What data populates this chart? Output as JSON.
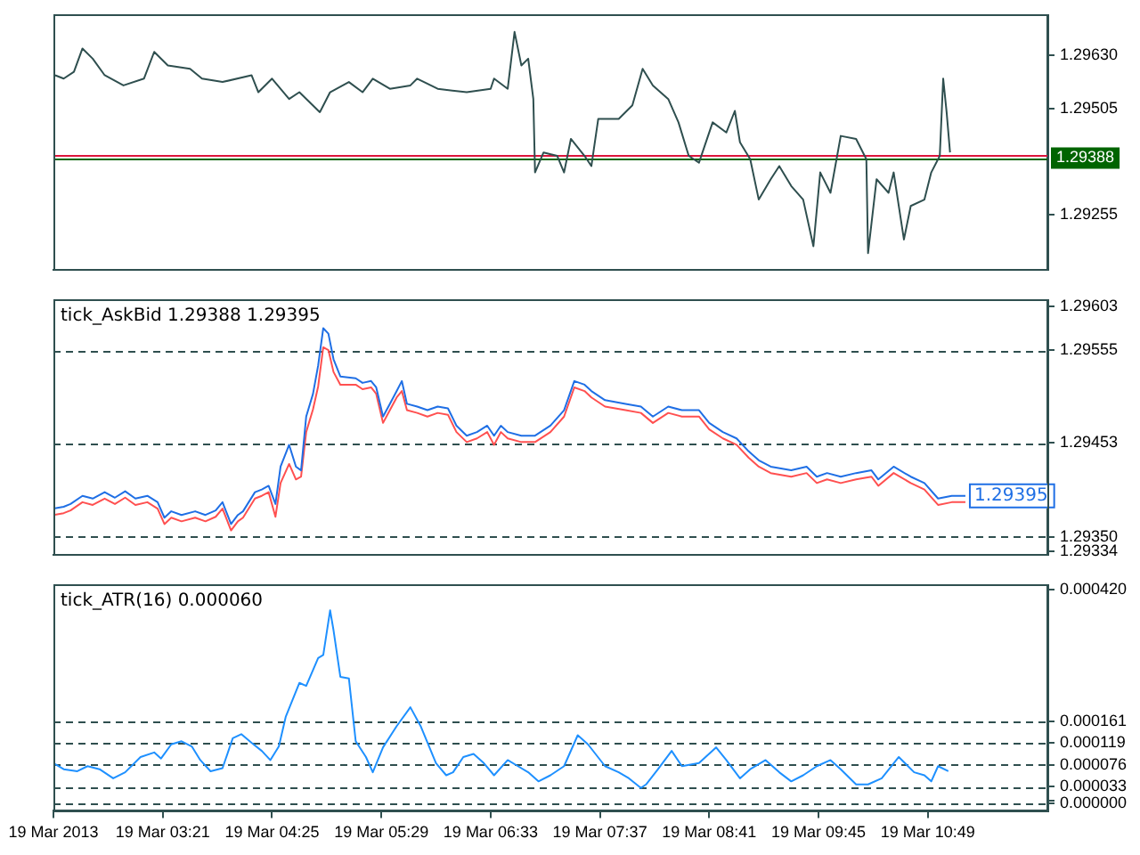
{
  "chart_data": [
    {
      "type": "line",
      "x": [
        "2013-03-19T02:18",
        "2013-03-19T02:23",
        "2013-03-19T02:29",
        "2013-03-19T02:34",
        "2013-03-19T02:40",
        "2013-03-19T02:47",
        "2013-03-19T02:58",
        "2013-03-19T03:10",
        "2013-03-19T03:16",
        "2013-03-19T03:24",
        "2013-03-19T03:37",
        "2013-03-19T03:44",
        "2013-03-19T03:56",
        "2013-03-19T04:13",
        "2013-03-19T04:17",
        "2013-03-19T04:25",
        "2013-03-19T04:35",
        "2013-03-19T04:41",
        "2013-03-19T04:53",
        "2013-03-19T04:59",
        "2013-03-19T05:10",
        "2013-03-19T05:18",
        "2013-03-19T05:24",
        "2013-03-19T05:34",
        "2013-03-19T05:46",
        "2013-03-19T05:50",
        "2013-03-19T06:02",
        "2013-03-19T06:19",
        "2013-03-19T06:33",
        "2013-03-19T06:35",
        "2013-03-19T06:43",
        "2013-03-19T06:47",
        "2013-03-19T06:51",
        "2013-03-19T06:55",
        "2013-03-19T06:58",
        "2013-03-19T06:59",
        "2013-03-19T07:04",
        "2013-03-19T07:12",
        "2013-03-19T07:16",
        "2013-03-19T07:20",
        "2013-03-19T07:28",
        "2013-03-19T07:32",
        "2013-03-19T07:36",
        "2013-03-19T07:48",
        "2013-03-19T07:56",
        "2013-03-19T08:02",
        "2013-03-19T08:08",
        "2013-03-19T08:17",
        "2013-03-19T08:23",
        "2013-03-19T08:29",
        "2013-03-19T08:35",
        "2013-03-19T08:43",
        "2013-03-19T08:51",
        "2013-03-19T08:56",
        "2013-03-19T08:59",
        "2013-03-19T09:05",
        "2013-03-19T09:10",
        "2013-03-19T09:17",
        "2013-03-19T09:22",
        "2013-03-19T09:29",
        "2013-03-19T09:36",
        "2013-03-19T09:42",
        "2013-03-19T09:46",
        "2013-03-19T09:52",
        "2013-03-19T09:58",
        "2013-03-19T10:07",
        "2013-03-19T10:13",
        "2013-03-19T10:14",
        "2013-03-19T10:19",
        "2013-03-19T10:26",
        "2013-03-19T10:29",
        "2013-03-19T10:35",
        "2013-03-19T10:39",
        "2013-03-19T10:47",
        "2013-03-19T10:51",
        "2013-03-19T10:56",
        "2013-03-19T10:58",
        "2013-03-19T11:00",
        "2013-03-19T11:02"
      ],
      "series": [
        {
          "color": "#2f4f4f",
          "values": [
            1.29583,
            1.29575,
            1.29591,
            1.29646,
            1.29622,
            1.29583,
            1.29559,
            1.29575,
            1.29638,
            1.29606,
            1.29598,
            1.29575,
            1.29567,
            1.29583,
            1.29543,
            1.29575,
            1.29527,
            1.29543,
            1.29496,
            1.29543,
            1.29567,
            1.29543,
            1.29575,
            1.29551,
            1.29559,
            1.29575,
            1.29551,
            1.29543,
            1.29551,
            1.29575,
            1.29551,
            1.29685,
            1.29606,
            1.29622,
            1.29527,
            1.29354,
            1.29401,
            1.29393,
            1.29354,
            1.29433,
            1.29393,
            1.29369,
            1.2948,
            1.2948,
            1.29512,
            1.29598,
            1.29559,
            1.29527,
            1.29472,
            1.29393,
            1.29377,
            1.29472,
            1.29448,
            1.29499,
            1.29425,
            1.29385,
            1.2929,
            1.29338,
            1.29369,
            1.29322,
            1.2929,
            1.2918,
            1.29354,
            1.29306,
            1.2944,
            1.29433,
            1.29385,
            1.29164,
            1.29338,
            1.29306,
            1.29354,
            1.29196,
            1.29275,
            1.2929,
            1.29354,
            1.29393,
            1.29575,
            1.29496,
            1.29401
          ]
        }
      ],
      "xlim": [
        "2013-03-19T02:17",
        "2013-03-19T11:59"
      ],
      "ylim": [
        1.29124,
        1.29725
      ],
      "yticks": [
        {
          "value": 1.2963,
          "label": "1.29630"
        },
        {
          "value": 1.29505,
          "label": "1.29505"
        },
        {
          "value": 1.29255,
          "label": "1.29255"
        }
      ],
      "ref_lines": [
        {
          "axis": "y",
          "value": 1.29395,
          "color": "#dc143c"
        },
        {
          "axis": "y",
          "value": 1.29388,
          "label": "1.29388",
          "color": "#006400"
        }
      ],
      "tick_labels": "y"
    },
    {
      "type": "line",
      "title": "tick_AskBid 1.29388 1.29395",
      "x": [
        "2013-03-19T02:17",
        "2013-03-19T02:23",
        "2013-03-19T02:27",
        "2013-03-19T02:34",
        "2013-03-19T02:40",
        "2013-03-19T02:47",
        "2013-03-19T02:53",
        "2013-03-19T02:59",
        "2013-03-19T03:05",
        "2013-03-19T03:12",
        "2013-03-19T03:18",
        "2013-03-19T03:22",
        "2013-03-19T03:26",
        "2013-03-19T03:32",
        "2013-03-19T03:40",
        "2013-03-19T03:46",
        "2013-03-19T03:52",
        "2013-03-19T03:56",
        "2013-03-19T04:01",
        "2013-03-19T04:05",
        "2013-03-19T04:08",
        "2013-03-19T04:15",
        "2013-03-19T04:19",
        "2013-03-19T04:23",
        "2013-03-19T04:27",
        "2013-03-19T04:30",
        "2013-03-19T04:35",
        "2013-03-19T04:39",
        "2013-03-19T04:42",
        "2013-03-19T04:45",
        "2013-03-19T04:49",
        "2013-03-19T04:52",
        "2013-03-19T04:55",
        "2013-03-19T04:58",
        "2013-03-19T05:01",
        "2013-03-19T05:05",
        "2013-03-19T05:14",
        "2013-03-19T05:18",
        "2013-03-19T05:23",
        "2013-03-19T05:26",
        "2013-03-19T05:30",
        "2013-03-19T05:34",
        "2013-03-19T05:38",
        "2013-03-19T05:41",
        "2013-03-19T05:44",
        "2013-03-19T05:50",
        "2013-03-19T05:56",
        "2013-03-19T06:02",
        "2013-03-19T06:08",
        "2013-03-19T06:13",
        "2013-03-19T06:19",
        "2013-03-19T06:25",
        "2013-03-19T06:31",
        "2013-03-19T06:35",
        "2013-03-19T06:39",
        "2013-03-19T06:43",
        "2013-03-19T06:51",
        "2013-03-19T06:59",
        "2013-03-19T07:08",
        "2013-03-19T07:16",
        "2013-03-19T07:22",
        "2013-03-19T07:28",
        "2013-03-19T07:32",
        "2013-03-19T07:40",
        "2013-03-19T07:52",
        "2013-03-19T08:01",
        "2013-03-19T08:08",
        "2013-03-19T08:17",
        "2013-03-19T08:25",
        "2013-03-19T08:35",
        "2013-03-19T08:41",
        "2013-03-19T08:49",
        "2013-03-19T08:57",
        "2013-03-19T09:04",
        "2013-03-19T09:10",
        "2013-03-19T09:17",
        "2013-03-19T09:29",
        "2013-03-19T09:38",
        "2013-03-19T09:44",
        "2013-03-19T09:50",
        "2013-03-19T09:58",
        "2013-03-19T10:07",
        "2013-03-19T10:16",
        "2013-03-19T10:20",
        "2013-03-19T10:29",
        "2013-03-19T10:39",
        "2013-03-19T10:47",
        "2013-03-19T10:55",
        "2013-03-19T11:03",
        "2013-03-19T11:11"
      ],
      "series": [
        {
          "color": "#1f6fe5",
          "values": [
            1.29381,
            1.29383,
            1.29386,
            1.29395,
            1.29392,
            1.29399,
            1.29393,
            1.294,
            1.29392,
            1.29395,
            1.29388,
            1.29371,
            1.29378,
            1.29374,
            1.29378,
            1.29374,
            1.29379,
            1.29388,
            1.29364,
            1.29374,
            1.29378,
            1.29399,
            1.29402,
            1.29406,
            1.29386,
            1.29427,
            1.29451,
            1.29427,
            1.29423,
            1.29482,
            1.29507,
            1.29538,
            1.29579,
            1.29573,
            1.29545,
            1.29526,
            1.29524,
            1.29519,
            1.29521,
            1.29514,
            1.29482,
            1.29496,
            1.2951,
            1.29521,
            1.29496,
            1.29493,
            1.29489,
            1.29493,
            1.29491,
            1.29472,
            1.29461,
            1.29465,
            1.29472,
            1.29461,
            1.29472,
            1.29465,
            1.29461,
            1.29461,
            1.29472,
            1.29489,
            1.29521,
            1.29517,
            1.2951,
            1.295,
            1.29496,
            1.29493,
            1.29482,
            1.29493,
            1.29489,
            1.29489,
            1.29475,
            1.29465,
            1.29458,
            1.29444,
            1.29434,
            1.29427,
            1.29423,
            1.29427,
            1.29416,
            1.2942,
            1.29416,
            1.2942,
            1.29423,
            1.29413,
            1.29427,
            1.29416,
            1.29409,
            1.29392,
            1.29395,
            1.29395
          ]
        },
        {
          "color": "#ff5050",
          "values": [
            1.29374,
            1.29376,
            1.29379,
            1.29388,
            1.29385,
            1.29392,
            1.29386,
            1.29393,
            1.29385,
            1.29388,
            1.29381,
            1.29364,
            1.29371,
            1.29367,
            1.29371,
            1.29367,
            1.29372,
            1.29381,
            1.29357,
            1.29367,
            1.29371,
            1.29392,
            1.29395,
            1.29399,
            1.29372,
            1.29409,
            1.2943,
            1.29413,
            1.29416,
            1.29465,
            1.2949,
            1.29515,
            1.29558,
            1.29555,
            1.29531,
            1.29517,
            1.29517,
            1.29512,
            1.29514,
            1.29507,
            1.29475,
            1.29489,
            1.29503,
            1.2951,
            1.29489,
            1.29486,
            1.29482,
            1.29486,
            1.29484,
            1.29465,
            1.29454,
            1.29458,
            1.29465,
            1.29451,
            1.29465,
            1.29458,
            1.29454,
            1.29454,
            1.29465,
            1.29482,
            1.29514,
            1.2951,
            1.29503,
            1.29493,
            1.29489,
            1.29486,
            1.29475,
            1.29486,
            1.29482,
            1.29482,
            1.29468,
            1.29458,
            1.29451,
            1.29437,
            1.29427,
            1.2942,
            1.29416,
            1.2942,
            1.29409,
            1.29413,
            1.29409,
            1.29413,
            1.29416,
            1.29406,
            1.2942,
            1.29409,
            1.29402,
            1.29385,
            1.29388,
            1.29388
          ]
        }
      ],
      "xlim": [
        "2013-03-19T02:17",
        "2013-03-19T11:59"
      ],
      "ylim": [
        1.2933,
        1.2961
      ],
      "yticks": [
        {
          "value": 1.29603,
          "label": "1.29603"
        },
        {
          "value": 1.29555,
          "label": "1.29555"
        },
        {
          "value": 1.29453,
          "label": "1.29453"
        },
        {
          "value": 1.2935,
          "label": "1.29350"
        },
        {
          "value": 1.29334,
          "label": "1.29334"
        }
      ],
      "ref_lines": [
        {
          "axis": "y",
          "value": 1.29555,
          "line_style": "dashed"
        },
        {
          "axis": "y",
          "value": 1.29453,
          "line_style": "dashed"
        },
        {
          "axis": "y",
          "value": 1.2935,
          "line_style": "dashed"
        }
      ],
      "annotations": [
        {
          "text": "1.29395",
          "x": "2013-03-19T11:11",
          "y": 1.29395
        }
      ],
      "tick_labels": "y"
    },
    {
      "type": "line",
      "title": "tick_ATR(16) 0.000060",
      "x": [
        "2013-03-19T02:17",
        "2013-03-19T02:23",
        "2013-03-19T02:31",
        "2013-03-19T02:37",
        "2013-03-19T02:44",
        "2013-03-19T02:52",
        "2013-03-19T02:59",
        "2013-03-19T03:08",
        "2013-03-19T03:16",
        "2013-03-19T03:20",
        "2013-03-19T03:26",
        "2013-03-19T03:32",
        "2013-03-19T03:38",
        "2013-03-19T03:43",
        "2013-03-19T03:49",
        "2013-03-19T03:56",
        "2013-03-19T04:02",
        "2013-03-19T04:07",
        "2013-03-19T04:13",
        "2013-03-19T04:19",
        "2013-03-19T04:24",
        "2013-03-19T04:29",
        "2013-03-19T04:33",
        "2013-03-19T04:41",
        "2013-03-19T04:45",
        "2013-03-19T04:52",
        "2013-03-19T04:55",
        "2013-03-19T04:59",
        "2013-03-19T05:01",
        "2013-03-19T05:05",
        "2013-03-19T05:10",
        "2013-03-19T05:14",
        "2013-03-19T05:20",
        "2013-03-19T05:24",
        "2013-03-19T05:30",
        "2013-03-19T05:38",
        "2013-03-19T05:46",
        "2013-03-19T05:52",
        "2013-03-19T06:01",
        "2013-03-19T06:07",
        "2013-03-19T06:11",
        "2013-03-19T06:17",
        "2013-03-19T06:23",
        "2013-03-19T06:29",
        "2013-03-19T06:35",
        "2013-03-19T06:43",
        "2013-03-19T06:49",
        "2013-03-19T06:55",
        "2013-03-19T07:01",
        "2013-03-19T07:08",
        "2013-03-19T07:16",
        "2013-03-19T07:24",
        "2013-03-19T07:30",
        "2013-03-19T07:40",
        "2013-03-19T07:48",
        "2013-03-19T07:54",
        "2013-03-19T08:01",
        "2013-03-19T08:04",
        "2013-03-19T08:11",
        "2013-03-19T08:19",
        "2013-03-19T08:25",
        "2013-03-19T08:35",
        "2013-03-19T08:45",
        "2013-03-19T08:51",
        "2013-03-19T08:59",
        "2013-03-19T09:05",
        "2013-03-19T09:14",
        "2013-03-19T09:22",
        "2013-03-19T09:29",
        "2013-03-19T09:36",
        "2013-03-19T09:44",
        "2013-03-19T09:52",
        "2013-03-19T09:58",
        "2013-03-19T10:07",
        "2013-03-19T10:14",
        "2013-03-19T10:22",
        "2013-03-19T10:32",
        "2013-03-19T10:41",
        "2013-03-19T10:47",
        "2013-03-19T10:51",
        "2013-03-19T10:55",
        "2013-03-19T11:01"
      ],
      "series": [
        {
          "color": "#1e90ff",
          "values": [
            7.9e-05,
            6.7e-05,
            6.3e-05,
            7.3e-05,
            6.7e-05,
            4.9e-05,
            6.1e-05,
            9.1e-05,
            0.0001,
            8.8e-05,
            0.000116,
            0.000122,
            0.000112,
            8.5e-05,
            6.3e-05,
            6.9e-05,
            0.000128,
            0.000136,
            0.000119,
            0.000103,
            8.5e-05,
            0.000112,
            0.00017,
            0.000237,
            0.000231,
            0.000286,
            0.000292,
            0.00038,
            0.000341,
            0.000249,
            0.000246,
            0.000122,
            9.1e-05,
            6.1e-05,
            0.00011,
            0.000152,
            0.000189,
            0.000152,
            7.9e-05,
            5.5e-05,
            6.1e-05,
            9.1e-05,
            9.7e-05,
            7.9e-05,
            5.5e-05,
            8.5e-05,
            7.3e-05,
            6.1e-05,
            4.3e-05,
            5.5e-05,
            7.3e-05,
            0.000134,
            0.000116,
            7.3e-05,
            6.1e-05,
            4.9e-05,
            3e-05,
            3.7e-05,
            6.7e-05,
            0.000103,
            7.3e-05,
            7.9e-05,
            0.00011,
            8.5e-05,
            4.9e-05,
            6.7e-05,
            8.5e-05,
            6.1e-05,
            4.3e-05,
            5.5e-05,
            7.3e-05,
            8.5e-05,
            6.7e-05,
            3.7e-05,
            3.7e-05,
            4.9e-05,
            9.1e-05,
            6.1e-05,
            5.5e-05,
            4.3e-05,
            7.3e-05,
            6.3e-05
          ]
        }
      ],
      "xlim": [
        "2013-03-19T02:17",
        "2013-03-19T11:59"
      ],
      "xticks": [
        {
          "value": "2013-03-19T02:17",
          "label": "19 Mar 2013"
        },
        {
          "value": "2013-03-19T03:21",
          "label": "19 Mar 03:21"
        },
        {
          "value": "2013-03-19T04:25",
          "label": "19 Mar 04:25"
        },
        {
          "value": "2013-03-19T05:29",
          "label": "19 Mar 05:29"
        },
        {
          "value": "2013-03-19T06:33",
          "label": "19 Mar 06:33"
        },
        {
          "value": "2013-03-19T07:37",
          "label": "19 Mar 07:37"
        },
        {
          "value": "2013-03-19T08:41",
          "label": "19 Mar 08:41"
        },
        {
          "value": "2013-03-19T09:45",
          "label": "19 Mar 09:45"
        },
        {
          "value": "2013-03-19T10:49",
          "label": "19 Mar 10:49"
        }
      ],
      "ylim": [
        -1.5e-05,
        0.00043
      ],
      "yticks": [
        {
          "value": 0.00042,
          "label": "0.000420"
        },
        {
          "value": 0.000161,
          "label": "0.000161"
        },
        {
          "value": 0.000119,
          "label": "0.000119"
        },
        {
          "value": 7.6e-05,
          "label": "0.000076"
        },
        {
          "value": 3.3e-05,
          "label": "0.000033"
        },
        {
          "value": 5e-06,
          "label": null
        },
        {
          "value": 0,
          "label": "0.000000"
        }
      ],
      "ref_lines": [
        {
          "axis": "y",
          "value": 0.000161,
          "line_style": "dashed"
        },
        {
          "axis": "y",
          "value": 0.000119,
          "line_style": "dashed"
        },
        {
          "axis": "y",
          "value": 7.6e-05,
          "line_style": "dashed"
        },
        {
          "axis": "y",
          "value": 3.3e-05,
          "line_style": "dashed"
        },
        {
          "axis": "y",
          "value": 0,
          "line_style": "dashed"
        }
      ]
    }
  ]
}
